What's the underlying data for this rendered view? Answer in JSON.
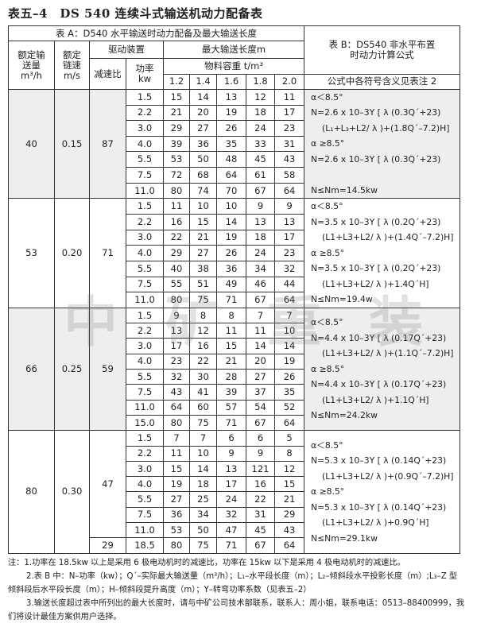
{
  "title": "表五–4　DS 540 连续斗式输送机动力配备表",
  "header": {
    "table_a": "表 A：D540 水平输送时动力配备及最大输送长度",
    "table_b": "表 B：DS540 非水平布置时动力计算公式",
    "rated_qty": "额定输送量m³/h",
    "chain_speed": "额定链速m/s",
    "drive": "驱动装置",
    "ratio": "减速比",
    "power": "功率kw",
    "max_len": "最大输送长度m",
    "density": "物料容重 t/m³",
    "densities": [
      "1.2",
      "1.4",
      "1.6",
      "1.8",
      "2.0"
    ],
    "formula_note": "公式中各符号含义见表注 2"
  },
  "groups": [
    {
      "qty": "40",
      "speed": "0.15",
      "ratio": "87",
      "rows": [
        [
          "1.5",
          "15",
          "14",
          "13",
          "12",
          "11"
        ],
        [
          "2.2",
          "21",
          "20",
          "19",
          "18",
          "17"
        ],
        [
          "3.0",
          "29",
          "27",
          "26",
          "24",
          "23"
        ],
        [
          "4.0",
          "39",
          "36",
          "35",
          "33",
          "31"
        ],
        [
          "5.5",
          "53",
          "50",
          "48",
          "45",
          "43"
        ],
        [
          "7.5",
          "72",
          "68",
          "64",
          "61",
          "58"
        ],
        [
          "11.0",
          "80",
          "74",
          "70",
          "67",
          "64"
        ]
      ],
      "formula": [
        "α＜8.5°",
        "N=2.6 x 10–3Y [ λ (0.3Q´+23)",
        "(L₁+L₃+L2/ λ )+(1.8Q´–7.2)H]",
        "α ≥8.5°",
        "N=2.6 x 10–3Y [ λ (0.3Q´+23)",
        "",
        "N≤Nm=14.5kw"
      ]
    },
    {
      "qty": "53",
      "speed": "0.20",
      "ratio": "71",
      "rows": [
        [
          "1.5",
          "11",
          "10",
          "10",
          "9",
          "9"
        ],
        [
          "2.2",
          "16",
          "15",
          "14",
          "13",
          "13"
        ],
        [
          "3.0",
          "22",
          "21",
          "19",
          "18",
          "17"
        ],
        [
          "4.0",
          "29",
          "27",
          "26",
          "24",
          "23"
        ],
        [
          "5.5",
          "40",
          "38",
          "36",
          "34",
          "32"
        ],
        [
          "7.5",
          "55",
          "51",
          "49",
          "46",
          "44"
        ],
        [
          "11.0",
          "80",
          "75",
          "71",
          "67",
          "64"
        ]
      ],
      "formula": [
        "α＜8.5°",
        "N=3.5 x 10–3Y [ λ (0.2Q´+23)",
        "(L1+L3+L2/ λ )+(1.4Q´–7.2)H]",
        "α ≥8.5°",
        "N=3.5 x 10–3Y [ λ (0.2Q´+23)",
        "(L1+L3+L2/ λ )+1.4Q´H]",
        "N≤Nm=19.4w"
      ]
    },
    {
      "qty": "66",
      "speed": "0.25",
      "ratio": "59",
      "rows": [
        [
          "1.5",
          "9",
          "8",
          "8",
          "7",
          "7"
        ],
        [
          "2.2",
          "13",
          "12",
          "11",
          "11",
          "10"
        ],
        [
          "3.0",
          "17",
          "16",
          "15",
          "14",
          "14"
        ],
        [
          "4.0",
          "23",
          "22",
          "21",
          "20",
          "19"
        ],
        [
          "5.5",
          "32",
          "30",
          "28",
          "27",
          "26"
        ],
        [
          "7.5",
          "43",
          "41",
          "39",
          "37",
          "35"
        ],
        [
          "11.0",
          "64",
          "60",
          "57",
          "54",
          "52"
        ],
        [
          "15.0",
          "80",
          "75",
          "71",
          "67",
          "64"
        ]
      ],
      "formula": [
        "α＜8.5°",
        "N=4.4 x 10–3Y [ λ (0.17Q´+23)",
        "(L1+L3+L2/ λ )+(1.1Q´–7.2)H]",
        "α ≥8.5°",
        "N=4.4 x 10–3Y [ λ (0.17Q´+23)",
        "(L1+L3+L2/ λ )+1.1Q´H]",
        "N≤Nm=24.2kw"
      ]
    },
    {
      "qty": "80",
      "speed": "0.30",
      "ratio": "47",
      "ratio2": "29",
      "rows": [
        [
          "1.5",
          "7",
          "7",
          "6",
          "6",
          "5"
        ],
        [
          "2.2",
          "11",
          "10",
          "9",
          "9",
          "8"
        ],
        [
          "3.0",
          "15",
          "14",
          "13",
          "121",
          "12"
        ],
        [
          "4.0",
          "19",
          "18",
          "17",
          "16",
          "15"
        ],
        [
          "5.5",
          "27",
          "25",
          "24",
          "22",
          "21"
        ],
        [
          "7.5",
          "36",
          "34",
          "32",
          "31",
          "29"
        ],
        [
          "11.0",
          "53",
          "50",
          "47",
          "45",
          "43"
        ],
        [
          "18.5",
          "80",
          "75",
          "71",
          "67",
          "64"
        ]
      ],
      "formula": [
        "α＜8.5°",
        "N=5.3 x 10–3Y [ λ (0.14Q´+23)",
        "(L1+L3+L2/ λ )+(0.9Q´–7.2)H]",
        "α ≥8.5°",
        "N=5.3 x 10–3Y [ λ (0.14Q´+23)",
        "(L1+L3+L2/ λ )+0.9Q´H]",
        "N≤Nm=29.1kw"
      ]
    }
  ],
  "notes": [
    "注：1.功率在 18.5kw 以上是采用 6 极电动机时的减速比，功率在 15kw 以下是采用 4 极电动机时的减速比。",
    "2.表 B 中：N–功率（kw）；Q´–实际最大输送量（m³/h）；L₁–水平段长度（m）；L₂–倾斜段水平投影长度（m）;L₃–Z 型",
    "倾斜段后水平段长度（m）；H–倾斜段提升高度（m）；Y–转弯功率系数（见表五–2）",
    "3.输送长度超过表中所列出的最大长度时，请与中矿公司技术部联系，联系人：周小姐，联系电话：0513–88400999，我",
    "们将设计最佳方案供用户选择。"
  ],
  "watermark": "中矿重装"
}
